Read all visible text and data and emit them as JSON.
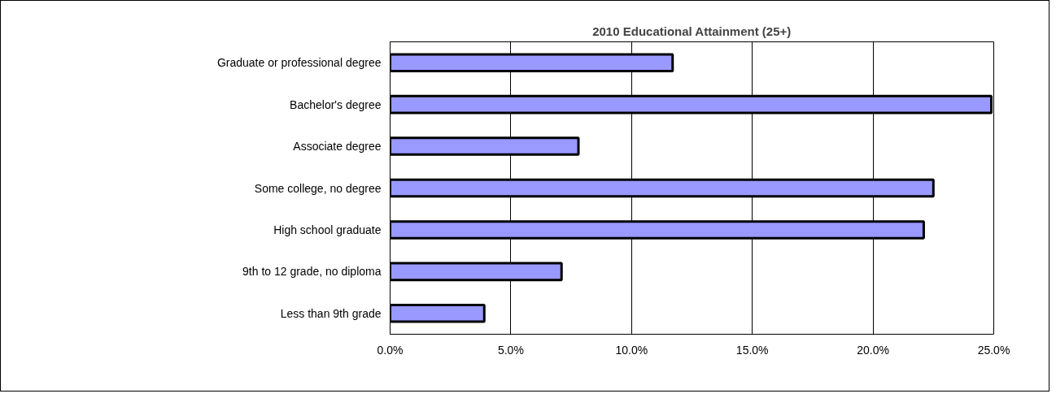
{
  "chart_data": {
    "type": "bar",
    "orientation": "horizontal",
    "title": "2010 Educational Attainment (25+)",
    "categories": [
      "Graduate or professional degree",
      "Bachelor's degree",
      "Associate degree",
      "Some college, no degree",
      "High school graduate",
      "9th to 12 grade, no diploma",
      "Less than 9th grade"
    ],
    "values": [
      11.7,
      24.9,
      7.8,
      22.5,
      22.1,
      7.1,
      3.9
    ],
    "color": "#9999ff",
    "xlim": [
      0,
      25
    ],
    "xticks": [
      {
        "value": 0,
        "label": "0.0%"
      },
      {
        "value": 5,
        "label": "5.0%"
      },
      {
        "value": 10,
        "label": "10.0%"
      },
      {
        "value": 15,
        "label": "15.0%"
      },
      {
        "value": 20,
        "label": "20.0%"
      },
      {
        "value": 25,
        "label": "25.0%"
      }
    ],
    "grid": "x"
  }
}
